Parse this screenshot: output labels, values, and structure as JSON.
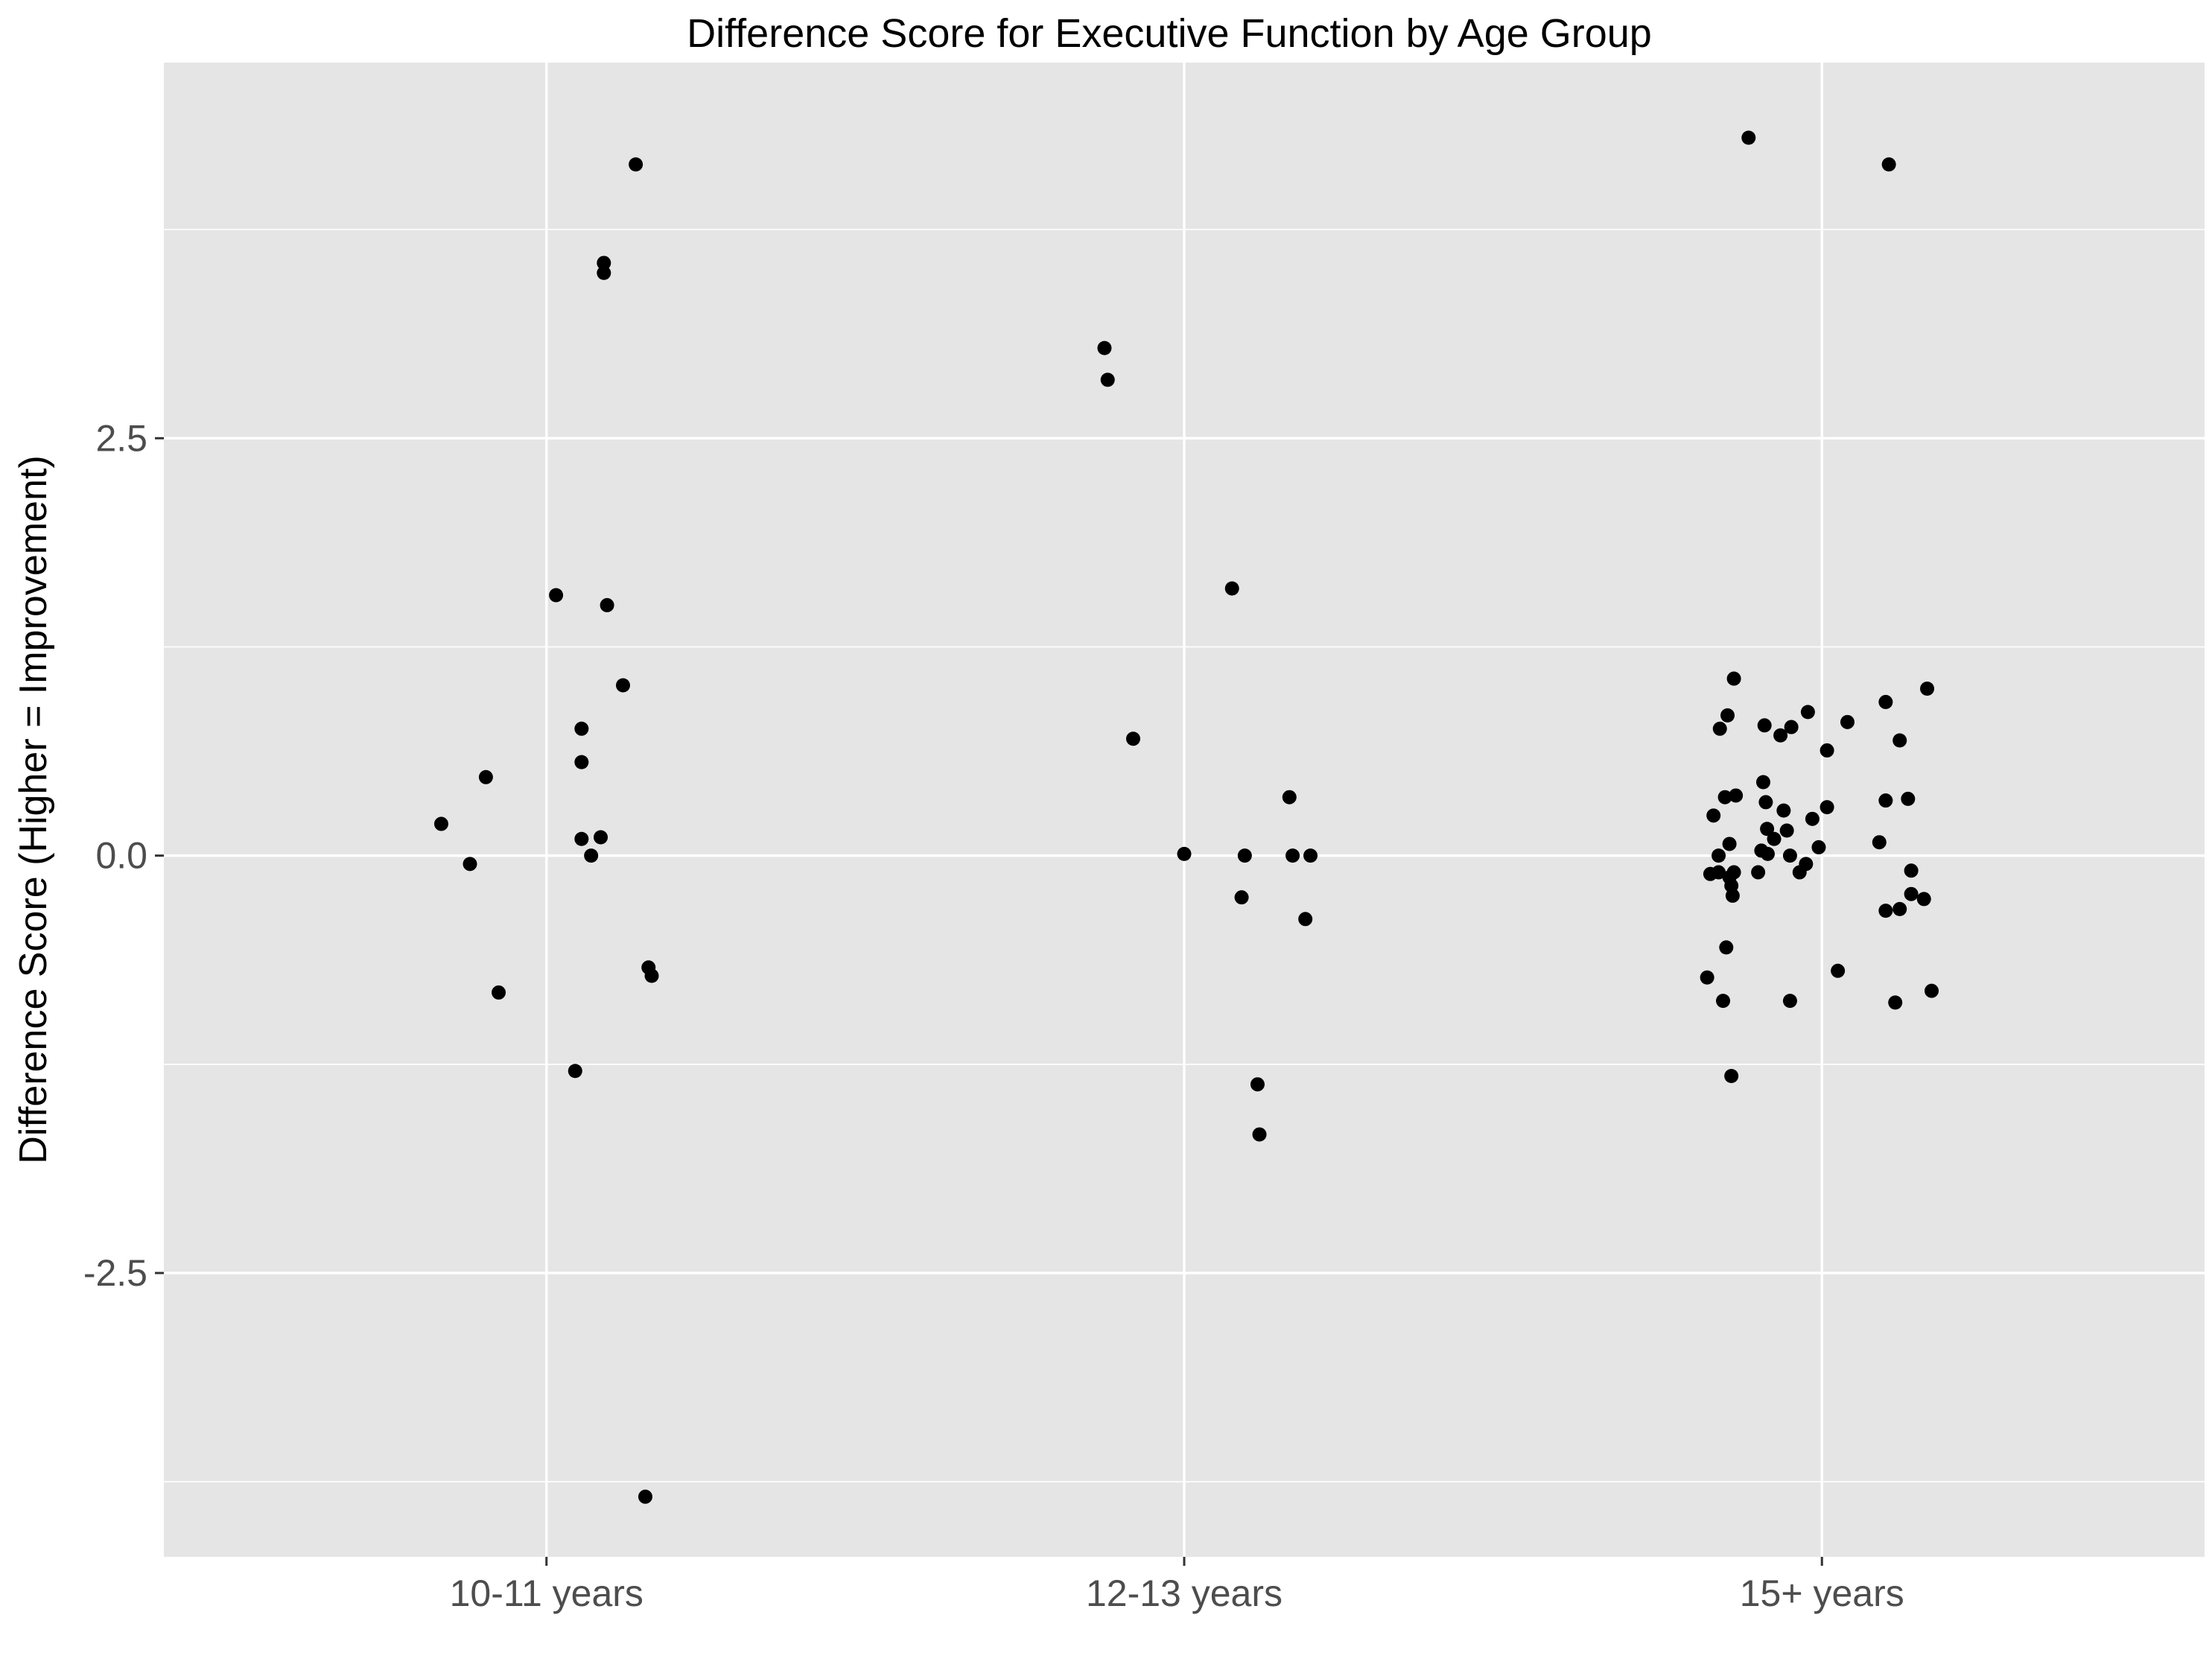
{
  "chart_data": {
    "type": "scatter",
    "title": "Difference Score for Executive Function by Age Group",
    "xlabel": "",
    "ylabel": "Difference Score (Higher = Improvement)",
    "categories": [
      "10-11 years",
      "12-13 years",
      "15+ years"
    ],
    "x_range": [
      0.4,
      3.6
    ],
    "ylim": [
      -4.2,
      4.75
    ],
    "y_ticks": [
      -2.5,
      0.0,
      2.5
    ],
    "y_tick_labels": [
      "-2.5",
      "0.0",
      "2.5"
    ],
    "grid": true,
    "legend": "none",
    "colors": {
      "panel": "#e5e5e5",
      "grid": "#ffffff",
      "point": "#000000"
    },
    "points": [
      {
        "x": 0.835,
        "y": 0.19
      },
      {
        "x": 0.88,
        "y": -0.05
      },
      {
        "x": 0.905,
        "y": 0.47
      },
      {
        "x": 0.925,
        "y": -0.82
      },
      {
        "x": 1.015,
        "y": 1.56
      },
      {
        "x": 1.045,
        "y": -1.29
      },
      {
        "x": 1.055,
        "y": 0.76
      },
      {
        "x": 1.055,
        "y": 0.56
      },
      {
        "x": 1.055,
        "y": 0.1
      },
      {
        "x": 1.07,
        "y": 0.0
      },
      {
        "x": 1.085,
        "y": 0.11
      },
      {
        "x": 1.09,
        "y": 3.55
      },
      {
        "x": 1.09,
        "y": 3.49
      },
      {
        "x": 1.095,
        "y": 1.5
      },
      {
        "x": 1.12,
        "y": 1.02
      },
      {
        "x": 1.14,
        "y": 4.14
      },
      {
        "x": 1.155,
        "y": -3.84
      },
      {
        "x": 1.16,
        "y": -0.67
      },
      {
        "x": 1.165,
        "y": -0.72
      },
      {
        "x": 1.875,
        "y": 3.04
      },
      {
        "x": 1.88,
        "y": 2.85
      },
      {
        "x": 1.92,
        "y": 0.7
      },
      {
        "x": 2.0,
        "y": 0.01
      },
      {
        "x": 2.075,
        "y": 1.6
      },
      {
        "x": 2.095,
        "y": 0.0
      },
      {
        "x": 2.09,
        "y": -0.25
      },
      {
        "x": 2.115,
        "y": -1.37
      },
      {
        "x": 2.118,
        "y": -1.67
      },
      {
        "x": 2.165,
        "y": 0.35
      },
      {
        "x": 2.17,
        "y": 0.0
      },
      {
        "x": 2.19,
        "y": -0.38
      },
      {
        "x": 2.198,
        "y": 0.0
      },
      {
        "x": 2.885,
        "y": 4.3
      },
      {
        "x": 3.105,
        "y": 4.14
      },
      {
        "x": 2.82,
        "y": -0.73
      },
      {
        "x": 2.825,
        "y": -0.11
      },
      {
        "x": 2.83,
        "y": 0.24
      },
      {
        "x": 2.838,
        "y": 0.0
      },
      {
        "x": 2.838,
        "y": -0.1
      },
      {
        "x": 2.84,
        "y": 0.76
      },
      {
        "x": 2.845,
        "y": -0.87
      },
      {
        "x": 2.848,
        "y": 0.35
      },
      {
        "x": 2.85,
        "y": -0.55
      },
      {
        "x": 2.852,
        "y": 0.84
      },
      {
        "x": 2.855,
        "y": 0.07
      },
      {
        "x": 2.855,
        "y": -0.13
      },
      {
        "x": 2.858,
        "y": -0.18
      },
      {
        "x": 2.858,
        "y": -1.32
      },
      {
        "x": 2.86,
        "y": -0.24
      },
      {
        "x": 2.862,
        "y": 1.06
      },
      {
        "x": 2.862,
        "y": -0.1
      },
      {
        "x": 2.865,
        "y": 0.36
      },
      {
        "x": 2.9,
        "y": -0.1
      },
      {
        "x": 2.905,
        "y": 0.03
      },
      {
        "x": 2.908,
        "y": 0.44
      },
      {
        "x": 2.91,
        "y": 0.78
      },
      {
        "x": 2.912,
        "y": 0.32
      },
      {
        "x": 2.914,
        "y": 0.16
      },
      {
        "x": 2.915,
        "y": 0.01
      },
      {
        "x": 2.925,
        "y": 0.1
      },
      {
        "x": 2.935,
        "y": 0.72
      },
      {
        "x": 2.94,
        "y": 0.27
      },
      {
        "x": 2.945,
        "y": 0.15
      },
      {
        "x": 2.95,
        "y": 0.0
      },
      {
        "x": 2.95,
        "y": -0.87
      },
      {
        "x": 2.952,
        "y": 0.77
      },
      {
        "x": 2.965,
        "y": -0.1
      },
      {
        "x": 2.975,
        "y": -0.05
      },
      {
        "x": 2.978,
        "y": 0.86
      },
      {
        "x": 2.985,
        "y": 0.22
      },
      {
        "x": 2.995,
        "y": 0.05
      },
      {
        "x": 3.008,
        "y": 0.29
      },
      {
        "x": 3.008,
        "y": 0.63
      },
      {
        "x": 3.025,
        "y": -0.69
      },
      {
        "x": 3.04,
        "y": 0.8
      },
      {
        "x": 3.09,
        "y": 0.08
      },
      {
        "x": 3.1,
        "y": 0.33
      },
      {
        "x": 3.1,
        "y": 0.92
      },
      {
        "x": 3.1,
        "y": -0.33
      },
      {
        "x": 3.115,
        "y": -0.88
      },
      {
        "x": 3.122,
        "y": 0.69
      },
      {
        "x": 3.122,
        "y": -0.32
      },
      {
        "x": 3.135,
        "y": 0.34
      },
      {
        "x": 3.14,
        "y": -0.09
      },
      {
        "x": 3.14,
        "y": -0.23
      },
      {
        "x": 3.16,
        "y": -0.26
      },
      {
        "x": 3.165,
        "y": 1.0
      },
      {
        "x": 3.172,
        "y": -0.81
      }
    ]
  }
}
